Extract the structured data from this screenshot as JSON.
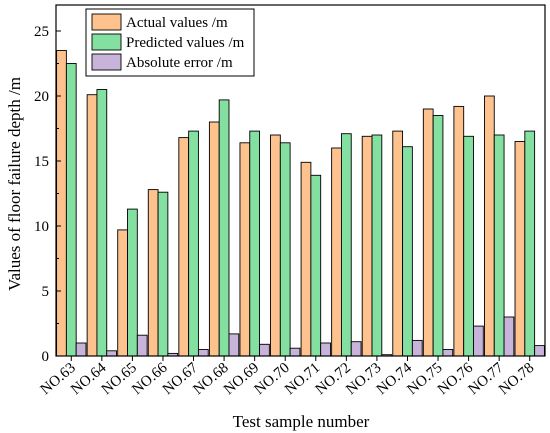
{
  "chart_data": {
    "type": "bar",
    "xlabel": "Test sample number",
    "ylabel": "Values of floor failure depth /m",
    "ylim": [
      0,
      27
    ],
    "yticks": [
      0,
      5,
      10,
      15,
      20,
      25
    ],
    "legend_position": "top-left",
    "categories": [
      "NO.63",
      "NO.64",
      "NO.65",
      "NO.66",
      "NO.67",
      "NO.68",
      "NO.69",
      "NO.70",
      "NO.71",
      "NO.72",
      "NO.73",
      "NO.74",
      "NO.75",
      "NO.76",
      "NO.77",
      "NO.78"
    ],
    "series": [
      {
        "name": "Actual values /m",
        "color": "#FDC28D",
        "values": [
          23.5,
          20.1,
          9.7,
          12.8,
          16.8,
          18.0,
          16.4,
          17.0,
          14.9,
          16.0,
          16.9,
          17.3,
          19.0,
          19.2,
          20.0,
          16.5
        ]
      },
      {
        "name": "Predicted values /m",
        "color": "#83E0A0",
        "values": [
          22.5,
          20.5,
          11.3,
          12.6,
          17.3,
          19.7,
          17.3,
          16.4,
          13.9,
          17.1,
          17.0,
          16.1,
          18.5,
          16.9,
          17.0,
          17.3
        ]
      },
      {
        "name": "Absolute error /m",
        "color": "#C8B4DB",
        "values": [
          1.0,
          0.4,
          1.6,
          0.2,
          0.5,
          1.7,
          0.9,
          0.6,
          1.0,
          1.1,
          0.1,
          1.2,
          0.5,
          2.3,
          3.0,
          0.8
        ]
      }
    ]
  }
}
